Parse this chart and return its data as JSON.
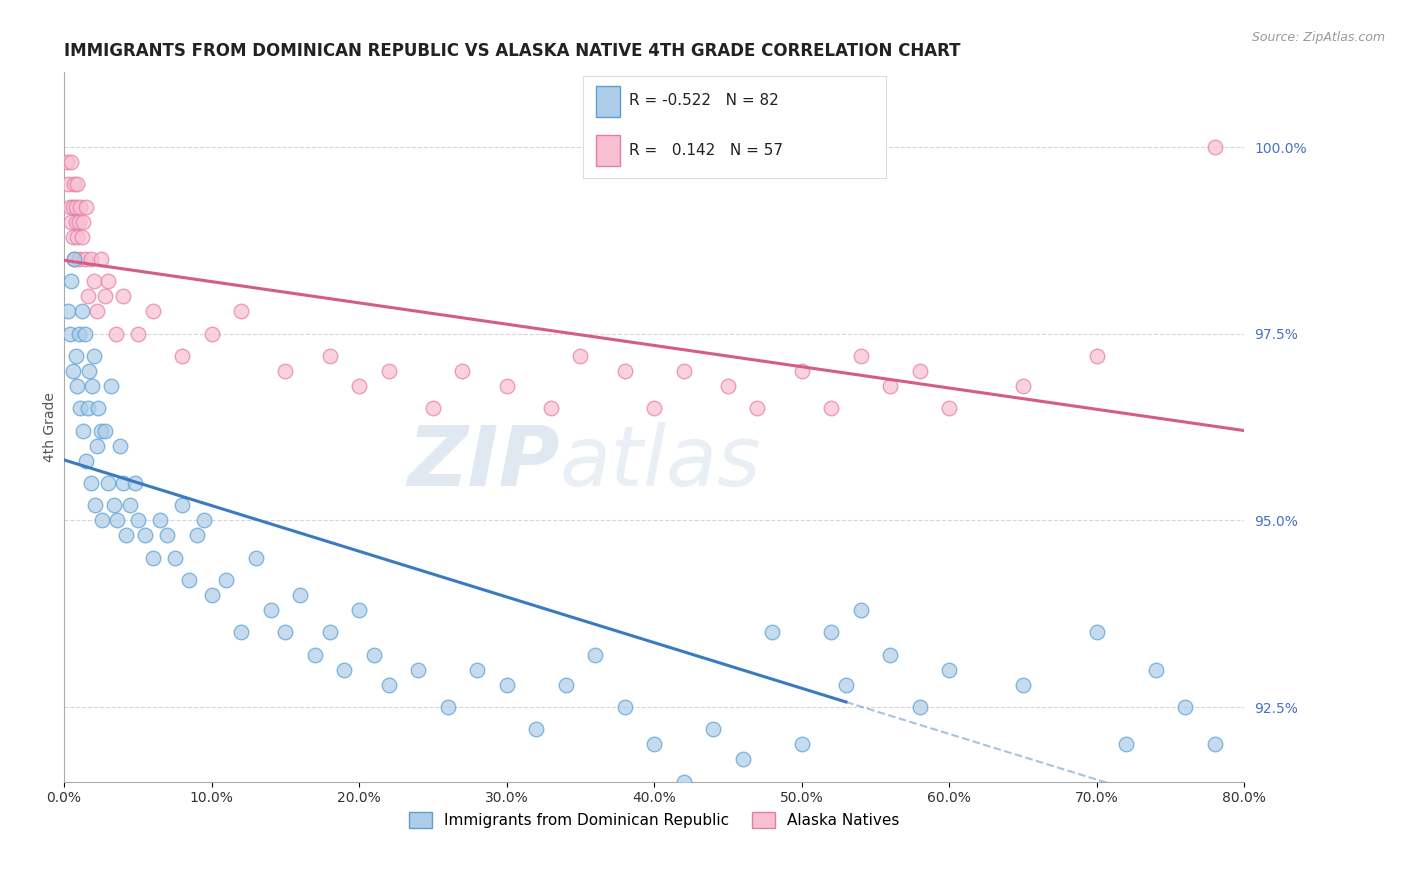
{
  "title": "IMMIGRANTS FROM DOMINICAN REPUBLIC VS ALASKA NATIVE 4TH GRADE CORRELATION CHART",
  "source": "Source: ZipAtlas.com",
  "xlabel_bottom": "Immigrants from Dominican Republic",
  "ylabel": "4th Grade",
  "x_min": 0.0,
  "x_max": 80.0,
  "y_min": 91.5,
  "y_max": 101.0,
  "y_ticks": [
    92.5,
    95.0,
    97.5,
    100.0
  ],
  "x_ticks": [
    0.0,
    10.0,
    20.0,
    30.0,
    40.0,
    50.0,
    60.0,
    70.0,
    80.0
  ],
  "legend_blue_r": "-0.522",
  "legend_blue_n": "82",
  "legend_pink_r": "0.142",
  "legend_pink_n": "57",
  "blue_color": "#aecde8",
  "blue_edge_color": "#5a9fd4",
  "blue_line_color": "#3a7bbf",
  "pink_color": "#f7c0d0",
  "pink_edge_color": "#e87aaa",
  "pink_line_color": "#d45c8a",
  "watermark_zip": "ZIP",
  "watermark_atlas": "atlas",
  "background_color": "#ffffff",
  "grid_color": "#cccccc",
  "title_fontsize": 12,
  "axis_label_fontsize": 10,
  "tick_fontsize": 10,
  "blue_scatter_x": [
    0.3,
    0.4,
    0.5,
    0.6,
    0.7,
    0.8,
    0.9,
    1.0,
    1.1,
    1.2,
    1.3,
    1.4,
    1.5,
    1.6,
    1.7,
    1.8,
    1.9,
    2.0,
    2.1,
    2.2,
    2.3,
    2.5,
    2.6,
    2.8,
    3.0,
    3.2,
    3.4,
    3.6,
    3.8,
    4.0,
    4.2,
    4.5,
    4.8,
    5.0,
    5.5,
    6.0,
    6.5,
    7.0,
    7.5,
    8.0,
    8.5,
    9.0,
    9.5,
    10.0,
    11.0,
    12.0,
    13.0,
    14.0,
    15.0,
    16.0,
    17.0,
    18.0,
    19.0,
    20.0,
    21.0,
    22.0,
    24.0,
    26.0,
    28.0,
    30.0,
    32.0,
    34.0,
    36.0,
    38.0,
    40.0,
    42.0,
    44.0,
    46.0,
    48.0,
    50.0,
    52.0,
    53.0,
    54.0,
    56.0,
    58.0,
    60.0,
    65.0,
    70.0,
    72.0,
    74.0,
    76.0,
    78.0
  ],
  "blue_scatter_y": [
    97.8,
    97.5,
    98.2,
    97.0,
    98.5,
    97.2,
    96.8,
    97.5,
    96.5,
    97.8,
    96.2,
    97.5,
    95.8,
    96.5,
    97.0,
    95.5,
    96.8,
    97.2,
    95.2,
    96.0,
    96.5,
    96.2,
    95.0,
    96.2,
    95.5,
    96.8,
    95.2,
    95.0,
    96.0,
    95.5,
    94.8,
    95.2,
    95.5,
    95.0,
    94.8,
    94.5,
    95.0,
    94.8,
    94.5,
    95.2,
    94.2,
    94.8,
    95.0,
    94.0,
    94.2,
    93.5,
    94.5,
    93.8,
    93.5,
    94.0,
    93.2,
    93.5,
    93.0,
    93.8,
    93.2,
    92.8,
    93.0,
    92.5,
    93.0,
    92.8,
    92.2,
    92.8,
    93.2,
    92.5,
    92.0,
    91.5,
    92.2,
    91.8,
    93.5,
    92.0,
    93.5,
    92.8,
    93.8,
    93.2,
    92.5,
    93.0,
    92.8,
    93.5,
    92.0,
    93.0,
    92.5,
    92.0
  ],
  "pink_scatter_x": [
    0.2,
    0.3,
    0.4,
    0.5,
    0.5,
    0.6,
    0.6,
    0.7,
    0.7,
    0.8,
    0.8,
    0.9,
    0.9,
    1.0,
    1.0,
    1.1,
    1.2,
    1.3,
    1.4,
    1.5,
    1.6,
    1.8,
    2.0,
    2.2,
    2.5,
    2.8,
    3.0,
    3.5,
    4.0,
    5.0,
    6.0,
    8.0,
    10.0,
    12.0,
    15.0,
    18.0,
    20.0,
    22.0,
    25.0,
    27.0,
    30.0,
    33.0,
    35.0,
    38.0,
    40.0,
    42.0,
    45.0,
    47.0,
    50.0,
    52.0,
    54.0,
    56.0,
    58.0,
    60.0,
    65.0,
    70.0,
    78.0
  ],
  "pink_scatter_y": [
    99.8,
    99.5,
    99.2,
    99.8,
    99.0,
    99.2,
    98.8,
    99.5,
    98.5,
    99.2,
    99.0,
    98.8,
    99.5,
    99.0,
    98.5,
    99.2,
    98.8,
    99.0,
    98.5,
    99.2,
    98.0,
    98.5,
    98.2,
    97.8,
    98.5,
    98.0,
    98.2,
    97.5,
    98.0,
    97.5,
    97.8,
    97.2,
    97.5,
    97.8,
    97.0,
    97.2,
    96.8,
    97.0,
    96.5,
    97.0,
    96.8,
    96.5,
    97.2,
    97.0,
    96.5,
    97.0,
    96.8,
    96.5,
    97.0,
    96.5,
    97.2,
    96.8,
    97.0,
    96.5,
    96.8,
    97.2,
    100.0
  ],
  "blue_line_start_x": 0.0,
  "blue_line_end_x": 53.0,
  "blue_dash_start_x": 53.0,
  "blue_dash_end_x": 80.0,
  "pink_line_start_x": 0.0,
  "pink_line_end_x": 80.0
}
